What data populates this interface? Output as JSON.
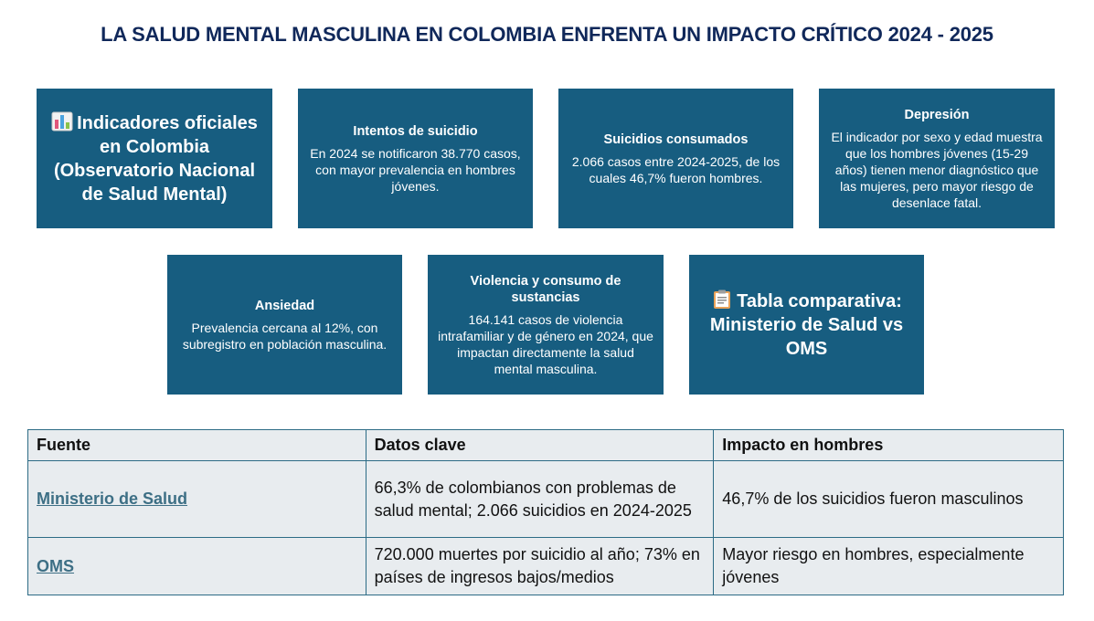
{
  "title": "LA SALUD MENTAL MASCULINA EN COLOMBIA ENFRENTA UN IMPACTO CRÍTICO 2024 - 2025",
  "cards": {
    "indicators": {
      "icon": "bar-chart-emoji",
      "text": "Indicadores oficiales en Colombia (Observatorio Nacional de Salud Mental)"
    },
    "suicide_attempts": {
      "heading": "Intentos de suicidio",
      "body": "En 2024 se notificaron 38.770 casos, con mayor prevalencia en hombres jóvenes."
    },
    "suicides": {
      "heading": "Suicidios consumados",
      "body": "2.066 casos entre 2024-2025, de los cuales 46,7% fueron hombres."
    },
    "depression": {
      "heading": "Depresión",
      "body": "El indicador por sexo y edad muestra que los hombres jóvenes (15-29 años) tienen menor diagnóstico que las mujeres, pero mayor riesgo de desenlace fatal."
    },
    "anxiety": {
      "heading": "Ansiedad",
      "body": "Prevalencia cercana al 12%, con subregistro en población masculina."
    },
    "violence": {
      "heading": "Violencia y consumo de sustancias",
      "body": "164.141 casos de violencia intrafamiliar y de género en 2024, que impactan directamente la salud mental masculina."
    },
    "comparison": {
      "icon": "clipboard-emoji",
      "text": "Tabla comparativa: Ministerio de Salud vs OMS"
    }
  },
  "table": {
    "headers": [
      "Fuente",
      "Datos clave",
      "Impacto en hombres"
    ],
    "rows": [
      [
        "Ministerio de Salud",
        "66,3% de colombianos con problemas de salud mental; 2.066 suicidios en 2024-2025",
        "46,7% de los suicidios fueron masculinos"
      ],
      [
        "OMS",
        "720.000 muertes por suicidio al año; 73% en países de ingresos bajos/medios",
        "Mayor riesgo en hombres, especialmente jóvenes"
      ]
    ]
  },
  "colors": {
    "card_bg": "#175d80",
    "title": "#10285a",
    "table_border": "#2c6b85",
    "table_bg": "#e8ecef",
    "link": "#3d6f85"
  }
}
